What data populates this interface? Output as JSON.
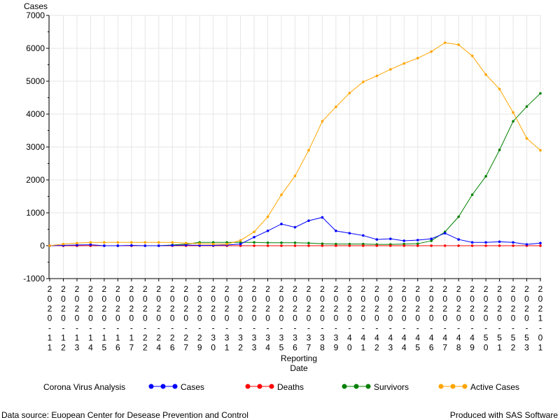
{
  "colors": {
    "background": "#ffffff",
    "grid": "#e6e6e6",
    "axis": "#000000"
  },
  "chart_data": {
    "type": "line",
    "title": "Corona Virus Analysis",
    "xlabel": [
      "Reporting",
      "Date"
    ],
    "ylabel": "Cases",
    "ylim": [
      -1000,
      7000
    ],
    "yticks": [
      -1000,
      0,
      1000,
      2000,
      3000,
      4000,
      5000,
      6000,
      7000
    ],
    "grid": true,
    "legend_position": "bottom",
    "categories": [
      "2020-11",
      "2020-12",
      "2020-13",
      "2020-14",
      "2020-15",
      "2020-16",
      "2020-17",
      "2020-22",
      "2020-24",
      "2020-26",
      "2020-27",
      "2020-29",
      "2020-30",
      "2020-31",
      "2020-32",
      "2020-33",
      "2020-34",
      "2020-35",
      "2020-36",
      "2020-37",
      "2020-38",
      "2020-39",
      "2020-40",
      "2020-41",
      "2020-42",
      "2020-43",
      "2020-44",
      "2020-45",
      "2020-46",
      "2020-47",
      "2020-48",
      "2020-49",
      "2020-50",
      "2020-51",
      "2020-52",
      "2020-53",
      "2021-01"
    ],
    "series": [
      {
        "name": "Cases",
        "color": "#0000ff",
        "values": [
          0,
          10,
          20,
          30,
          0,
          0,
          10,
          0,
          0,
          10,
          20,
          10,
          10,
          20,
          50,
          260,
          450,
          660,
          560,
          760,
          860,
          450,
          380,
          310,
          190,
          210,
          150,
          170,
          210,
          380,
          190,
          100,
          100,
          120,
          100,
          40,
          80
        ]
      },
      {
        "name": "Deaths",
        "color": "#ff0000",
        "values": [
          0,
          0,
          0,
          0,
          0,
          0,
          0,
          0,
          0,
          0,
          0,
          0,
          0,
          0,
          0,
          0,
          0,
          0,
          0,
          0,
          0,
          0,
          0,
          0,
          0,
          0,
          0,
          0,
          0,
          0,
          0,
          0,
          0,
          0,
          0,
          0,
          0
        ]
      },
      {
        "name": "Survivors",
        "color": "#008000",
        "values": [
          0,
          0,
          0,
          0,
          0,
          0,
          0,
          0,
          0,
          20,
          50,
          100,
          100,
          100,
          100,
          100,
          90,
          90,
          90,
          80,
          60,
          50,
          50,
          50,
          40,
          40,
          50,
          60,
          150,
          420,
          880,
          1550,
          2110,
          2910,
          3780,
          4230,
          4630
        ]
      },
      {
        "name": "Active Cases",
        "color": "#ffa500",
        "values": [
          0,
          50,
          80,
          100,
          100,
          100,
          100,
          100,
          100,
          100,
          80,
          60,
          50,
          50,
          160,
          420,
          880,
          1550,
          2120,
          2900,
          3780,
          4220,
          4640,
          4980,
          5160,
          5360,
          5540,
          5700,
          5900,
          6170,
          6110,
          5770,
          5200,
          4760,
          4050,
          3260,
          2900
        ]
      }
    ]
  },
  "footer": {
    "left": "Data source: Euopean Center for Desease Prevention and Control",
    "right": "Produced with SAS Software"
  }
}
